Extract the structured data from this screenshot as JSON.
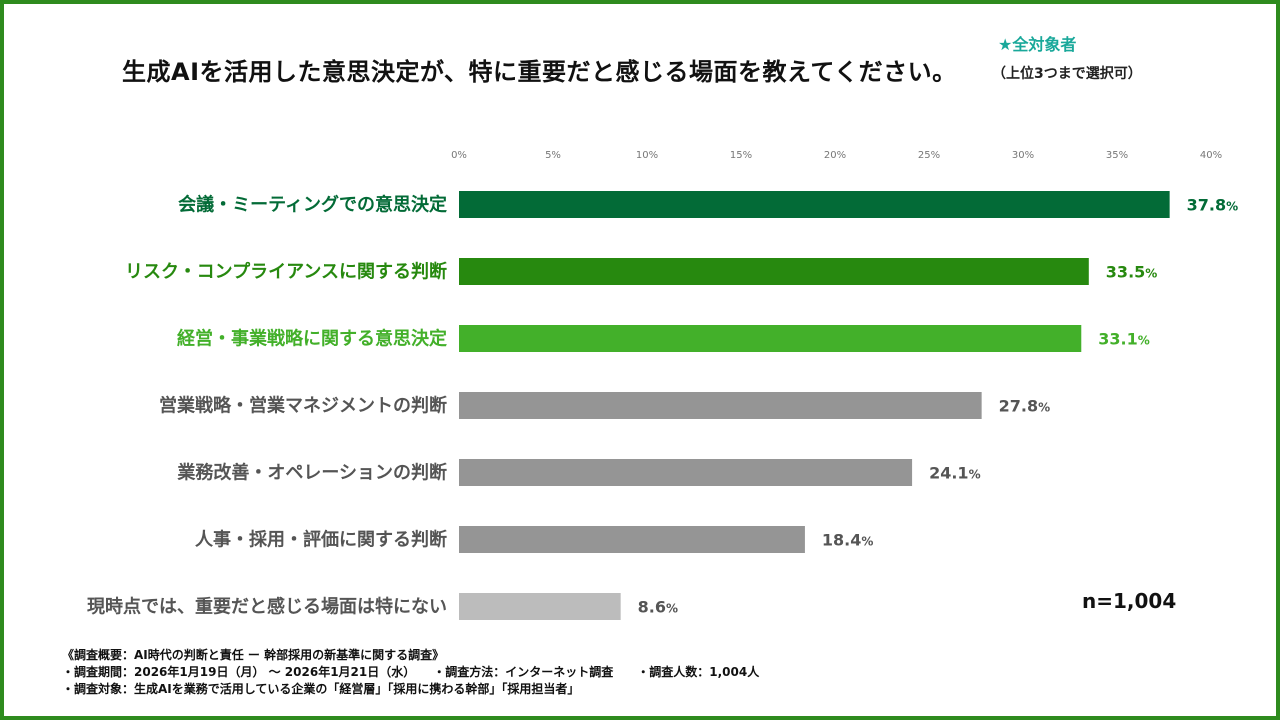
{
  "header": {
    "title": "生成AIを活用した意思決定が、特に重要だと感じる場面を教えてください。",
    "target": "★全対象者",
    "note": "（上位3つまで選択可）"
  },
  "chart_data": {
    "type": "bar",
    "orientation": "horizontal",
    "categories": [
      "会議・ミーティングでの意思決定",
      "リスク・コンプライアンスに関する判断",
      "経営・事業戦略に関する意思決定",
      "営業戦略・営業マネジメントの判断",
      "業務改善・オペレーションの判断",
      "人事・採用・評価に関する判断",
      "現時点では、重要だと感じる場面は特にない"
    ],
    "values": [
      37.8,
      33.5,
      33.1,
      27.8,
      24.1,
      18.4,
      8.6
    ],
    "value_labels": [
      "37.8",
      "33.5",
      "33.1",
      "27.8",
      "24.1",
      "18.4",
      "8.6"
    ],
    "value_unit": "%",
    "xlim": [
      0,
      40
    ],
    "x_ticks": [
      "0%",
      "5%",
      "10%",
      "15%",
      "20%",
      "25%",
      "30%",
      "35%",
      "40%"
    ],
    "grid": false,
    "bar_colors": [
      "#036b37",
      "#27890f",
      "#43b02a",
      "#959595",
      "#959595",
      "#959595",
      "#bcbcbc"
    ],
    "label_colors": [
      "#036b37",
      "#27890f",
      "#43b02a",
      "#555555",
      "#555555",
      "#555555",
      "#555555"
    ]
  },
  "sample_size": "n=1,004",
  "footer": {
    "lines": [
      "《調査概要：AI時代の判断と責任 ー 幹部採用の新基準に関する調査》",
      "・調査期間：2026年1月19日（月） 〜 2026年1月21日（水）　　・調査方法：インターネット調査　　・調査人数：1,004人",
      "・調査対象：生成AIを業務で活用している企業の「経営層」「採用に携わる幹部」「採用担当者」"
    ]
  },
  "colors": {
    "frame": "#2e8b1e",
    "accent_teal": "#19a89a"
  }
}
